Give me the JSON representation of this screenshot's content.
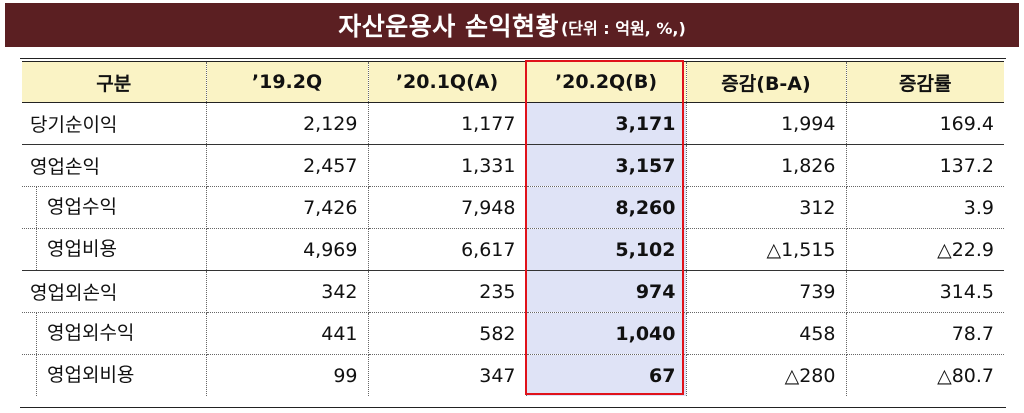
{
  "title": {
    "main": "자산운용사 손익현황",
    "unit": "(단위 : 억원, %,)"
  },
  "table": {
    "headers": [
      "구분",
      "’19.2Q",
      "’20.1Q(A)",
      "’20.2Q(B)",
      "증감(B-A)",
      "증감률"
    ],
    "rows": [
      {
        "label": "당기순이익",
        "values": [
          "2,129",
          "1,177",
          "3,171",
          "1,994",
          "169.4"
        ]
      },
      {
        "label": "영업손익",
        "values": [
          "2,457",
          "1,331",
          "3,157",
          "1,826",
          "137.2"
        ]
      },
      {
        "label": "영업수익",
        "values": [
          "7,426",
          "7,948",
          "8,260",
          "312",
          "3.9"
        ]
      },
      {
        "label": "영업비용",
        "values": [
          "4,969",
          "6,617",
          "5,102",
          "△1,515",
          "△22.9"
        ]
      },
      {
        "label": "영업외손익",
        "values": [
          "342",
          "235",
          "974",
          "739",
          "314.5"
        ]
      },
      {
        "label": "영업외수익",
        "values": [
          "441",
          "582",
          "1,040",
          "458",
          "78.7"
        ]
      },
      {
        "label": "영업외비용",
        "values": [
          "99",
          "347",
          "67",
          "△280",
          "△80.7"
        ]
      }
    ]
  },
  "colors": {
    "title_bg": "#5b1f22",
    "header_bg": "#faf3c5",
    "highlight_bg": "#dfe3f6",
    "highlight_border": "#e0121b"
  }
}
